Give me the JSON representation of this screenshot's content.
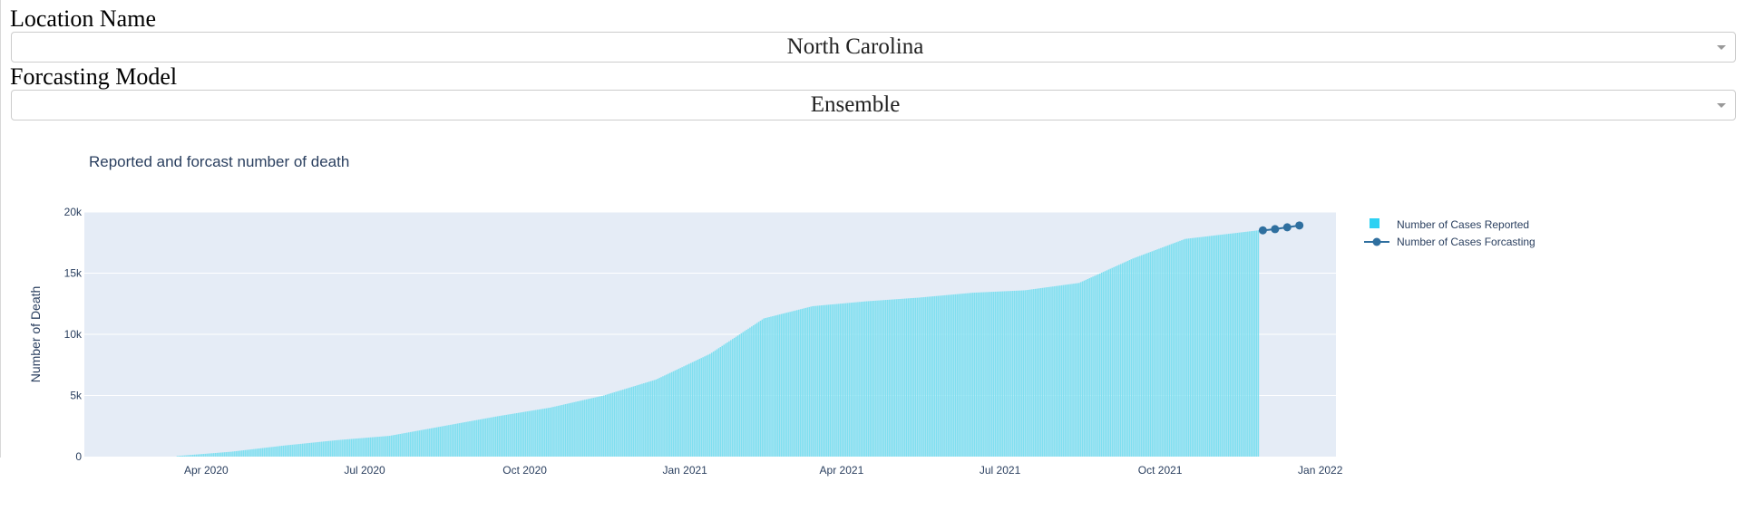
{
  "location": {
    "label": "Location Name",
    "selected": "North Carolina"
  },
  "model": {
    "label": "Forcasting Model",
    "selected": "Ensemble"
  },
  "colors": {
    "plot_bg": "#e5ecf6",
    "bar": "#7fdff0",
    "forecast": "#2f6f9f",
    "text": "#2a3f5f"
  },
  "chart_data": {
    "type": "bar",
    "title": "Reported and forcast number of death",
    "xlabel": "",
    "ylabel": "Number of Death",
    "xlim": [
      "2020-01-22",
      "2022-01-10"
    ],
    "ylim": [
      0,
      20000
    ],
    "grid": true,
    "legend_position": "top-right",
    "x_ticks": [
      "Apr 2020",
      "Jul 2020",
      "Oct 2020",
      "Jan 2021",
      "Apr 2021",
      "Jul 2021",
      "Oct 2021",
      "Jan 2022"
    ],
    "y_ticks": [
      "0",
      "5k",
      "10k",
      "15k",
      "20k"
    ],
    "series": [
      {
        "name": "Number of Cases Reported",
        "type": "bar",
        "x": [
          "2020-03-15",
          "2020-04-15",
          "2020-05-15",
          "2020-06-15",
          "2020-07-15",
          "2020-08-15",
          "2020-09-15",
          "2020-10-15",
          "2020-11-15",
          "2020-12-15",
          "2021-01-15",
          "2021-02-15",
          "2021-03-15",
          "2021-04-15",
          "2021-05-15",
          "2021-06-15",
          "2021-07-15",
          "2021-08-15",
          "2021-09-15",
          "2021-10-15",
          "2021-11-26"
        ],
        "values": [
          50,
          400,
          900,
          1350,
          1700,
          2500,
          3300,
          4000,
          5000,
          6300,
          8400,
          11300,
          12300,
          12700,
          13000,
          13400,
          13600,
          14200,
          16200,
          17800,
          18500
        ]
      },
      {
        "name": "Number of Cases Forcasting",
        "type": "line",
        "x": [
          "2021-11-29",
          "2021-12-06",
          "2021-12-13",
          "2021-12-20"
        ],
        "values": [
          18500,
          18600,
          18750,
          18900
        ]
      }
    ]
  }
}
